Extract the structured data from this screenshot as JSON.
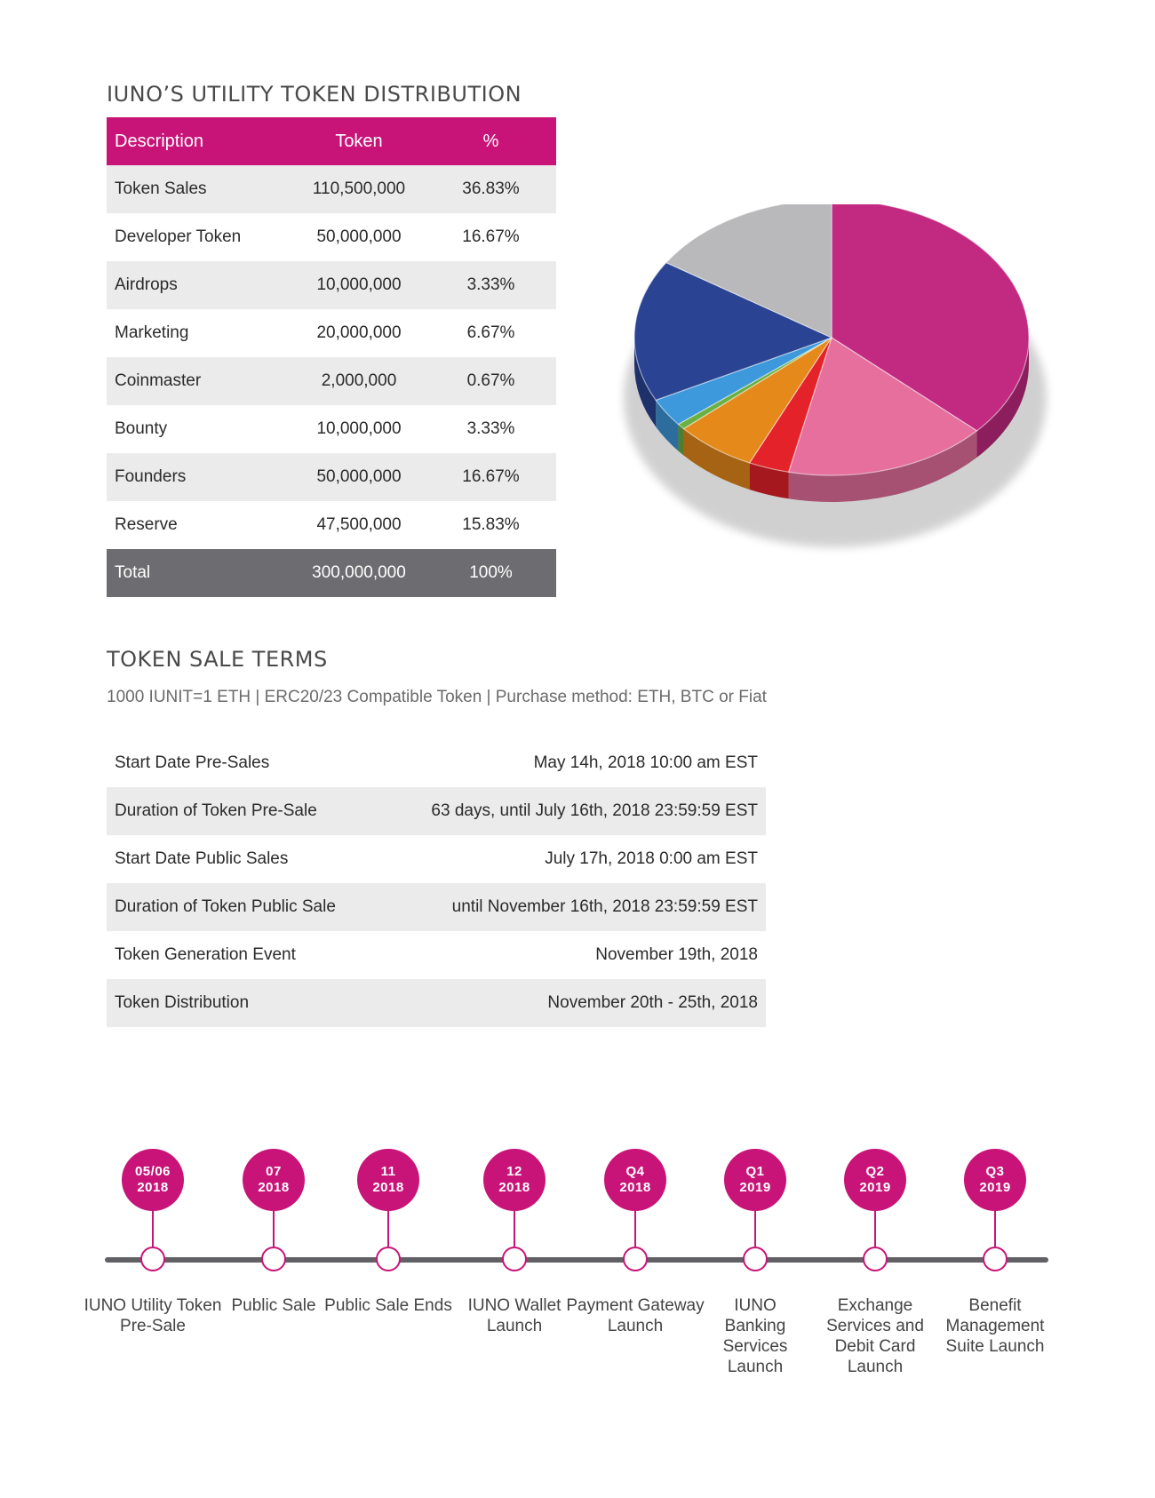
{
  "distribution": {
    "title": "IUNO’S UTILITY TOKEN DISTRIBUTION",
    "headers": [
      "Description",
      "Token",
      "%"
    ],
    "rows": [
      {
        "description": "Token Sales",
        "token": "110,500,000",
        "percent": "36.83%"
      },
      {
        "description": "Developer Token",
        "token": "50,000,000",
        "percent": "16.67%"
      },
      {
        "description": "Airdrops",
        "token": "10,000,000",
        "percent": "3.33%"
      },
      {
        "description": "Marketing",
        "token": "20,000,000",
        "percent": "6.67%"
      },
      {
        "description": "Coinmaster",
        "token": "2,000,000",
        "percent": "0.67%"
      },
      {
        "description": "Bounty",
        "token": "10,000,000",
        "percent": "3.33%"
      },
      {
        "description": "Founders",
        "token": "50,000,000",
        "percent": "16.67%"
      },
      {
        "description": "Reserve",
        "token": "47,500,000",
        "percent": "15.83%"
      }
    ],
    "total": {
      "label": "Total",
      "token": "300,000,000",
      "percent": "100%"
    }
  },
  "chart_data": {
    "type": "pie",
    "slices": [
      {
        "value": 36.83,
        "color": "#c22a82"
      },
      {
        "value": 16.67,
        "color": "#e66f9e"
      },
      {
        "value": 3.33,
        "color": "#e4222a"
      },
      {
        "value": 6.67,
        "color": "#e58a1a"
      },
      {
        "value": 0.67,
        "color": "#6ab043"
      },
      {
        "value": 3.33,
        "color": "#3d98dc"
      },
      {
        "value": 16.67,
        "color": "#2a4493"
      },
      {
        "value": 15.83,
        "color": "#b9b9bb"
      }
    ]
  },
  "terms": {
    "title": "TOKEN SALE TERMS",
    "subtitle": "1000 IUNIT=1 ETH  |  ERC20/23 Compatible Token  |  Purchase method: ETH, BTC or Fiat",
    "rows": [
      {
        "label": "Start Date Pre-Sales",
        "value": "May 14h, 2018 10:00 am EST"
      },
      {
        "label": "Duration of Token Pre-Sale",
        "value": "63 days, until July 16th, 2018 23:59:59 EST"
      },
      {
        "label": "Start Date Public Sales",
        "value": "July 17h, 2018 0:00 am EST"
      },
      {
        "label": "Duration of Token Public Sale",
        "value": "until November 16th, 2018 23:59:59 EST"
      },
      {
        "label": "Token Generation Event",
        "value": "November 19th, 2018"
      },
      {
        "label": "Token Distribution",
        "value": "November 20th - 25th, 2018"
      }
    ]
  },
  "timeline": [
    {
      "top": "05/06",
      "bottom": "2018",
      "label": "IUNO Utility Token Pre-Sale"
    },
    {
      "top": "07",
      "bottom": "2018",
      "label": "Public Sale"
    },
    {
      "top": "11",
      "bottom": "2018",
      "label": "Public Sale Ends"
    },
    {
      "top": "12",
      "bottom": "2018",
      "label": "IUNO Wallet Launch"
    },
    {
      "top": "Q4",
      "bottom": "2018",
      "label": "Payment Gateway Launch"
    },
    {
      "top": "Q1",
      "bottom": "2019",
      "label": "IUNO Banking Services Launch"
    },
    {
      "top": "Q2",
      "bottom": "2019",
      "label": "Exchange Services and Debit Card Launch"
    },
    {
      "top": "Q3",
      "bottom": "2019",
      "label": "Benefit Management Suite Launch"
    }
  ],
  "colors": {
    "accent": "#c81478",
    "total_row": "#6d6c70",
    "stripe": "#ebebeb"
  }
}
